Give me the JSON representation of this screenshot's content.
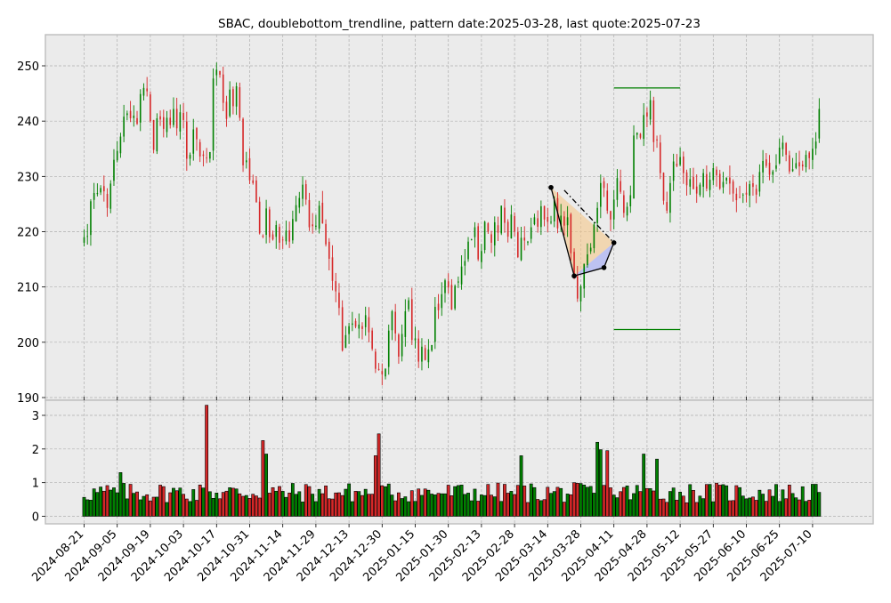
{
  "chart_data": {
    "type": "candlestick",
    "title": "SBAC, doublebottom_trendline, pattern date:2025-03-28, last quote:2025-07-23",
    "price_axis": {
      "ylim": [
        190,
        255
      ],
      "ticks": [
        190,
        200,
        210,
        220,
        230,
        240,
        250
      ]
    },
    "volume_axis": {
      "ylim": [
        0,
        3.3
      ],
      "ticks": [
        0,
        1,
        2,
        3
      ]
    },
    "x_tick_labels": [
      "2024-08-21",
      "2024-09-05",
      "2024-09-19",
      "2024-10-03",
      "2024-10-17",
      "2024-10-31",
      "2024-11-14",
      "2024-11-29",
      "2024-12-13",
      "2024-12-30",
      "2025-01-15",
      "2025-01-30",
      "2025-02-13",
      "2025-02-28",
      "2025-03-14",
      "2025-03-28",
      "2025-04-11",
      "2025-04-28",
      "2025-05-12",
      "2025-05-27",
      "2025-06-10",
      "2025-06-25",
      "2025-07-10"
    ],
    "x_tick_index": [
      0,
      10,
      20,
      30,
      40,
      50,
      60,
      70,
      80,
      90,
      100,
      110,
      120,
      130,
      140,
      150,
      160,
      170,
      180,
      190,
      200,
      210,
      220
    ],
    "grid": true,
    "colors": {
      "up": "#008000",
      "down": "#d62728",
      "background": "#ebebeb",
      "grid": "#b0b0b0",
      "pattern_line": "#000000",
      "level_line": "#008000",
      "fill_a": "#f5c88a",
      "fill_b": "#aab0f5"
    },
    "close_prices": [
      219.0,
      219.2,
      225.5,
      227.0,
      227.0,
      227.9,
      227.3,
      224.3,
      228.7,
      233.0,
      234.6,
      237.2,
      240.8,
      241.4,
      240.5,
      241.0,
      239.5,
      244.9,
      246.0,
      245.4,
      240.0,
      234.8,
      240.5,
      240.3,
      238.6,
      240.6,
      239.3,
      242.2,
      238.7,
      241.6,
      240.2,
      233.2,
      233.9,
      238.5,
      236.7,
      233.6,
      233.7,
      233.3,
      234.4,
      247.7,
      249.3,
      248.4,
      243.3,
      240.4,
      245.7,
      242.7,
      246.3,
      240.6,
      232.0,
      232.9,
      229.3,
      228.8,
      225.3,
      219.7,
      219.1,
      224.2,
      219.0,
      218.6,
      221.2,
      218.0,
      218.5,
      220.2,
      218.2,
      222.3,
      224.8,
      226.1,
      228.5,
      225.8,
      220.8,
      221.0,
      221.1,
      224.7,
      221.5,
      217.7,
      215.1,
      211.1,
      209.2,
      206.2,
      198.5,
      201.3,
      202.9,
      203.4,
      202.8,
      203.2,
      202.4,
      204.9,
      201.8,
      198.8,
      195.2,
      195.0,
      194.2,
      195.2,
      202.1,
      205.6,
      201.6,
      197.4,
      201.5,
      205.6,
      207.6,
      200.4,
      200.7,
      196.5,
      199.2,
      196.8,
      198.7,
      199.5,
      206.4,
      205.8,
      208.7,
      211.2,
      209.9,
      205.9,
      210.2,
      211.0,
      213.7,
      214.7,
      218.2,
      218.6,
      220.8,
      215.0,
      216.5,
      221.8,
      220.0,
      218.0,
      221.7,
      219.8,
      224.7,
      221.6,
      219.1,
      223.1,
      220.0,
      215.4,
      218.9,
      218.4,
      218.2,
      220.8,
      222.6,
      220.9,
      224.6,
      222.2,
      221.8,
      221.8,
      225.7,
      220.6,
      222.9,
      221.1,
      222.6,
      216.1,
      212.4,
      207.9,
      210.1,
      214.2,
      215.9,
      217.1,
      221.3,
      224.3,
      228.8,
      227.9,
      223.8,
      222.2,
      225.8,
      229.7,
      227.2,
      223.4,
      224.5,
      226.6,
      237.4,
      237.9,
      237.0,
      241.1,
      240.8,
      243.8,
      236.2,
      236.5,
      230.6,
      225.6,
      223.8,
      228.8,
      232.7,
      231.9,
      233.5,
      230.6,
      228.4,
      229.5,
      227.7,
      226.9,
      228.5,
      230.6,
      227.8,
      229.4,
      231.5,
      230.2,
      227.8,
      229.0,
      229.8,
      228.7,
      226.9,
      225.7,
      226.1,
      226.7,
      226.7,
      228.6,
      228.1,
      226.7,
      230.8,
      232.8,
      231.9,
      230.3,
      230.9,
      232.0,
      235.2,
      236.1,
      233.9,
      230.9,
      231.3,
      232.4,
      231.8,
      231.8,
      233.9,
      233.3,
      235.0,
      236.3,
      242.2
    ],
    "pattern": {
      "points": [
        {
          "i": 141,
          "price": 228.0
        },
        {
          "i": 148,
          "price": 212.0
        },
        {
          "i": 157,
          "price": 213.5
        },
        {
          "i": 160,
          "price": 218.0
        }
      ],
      "trendline": [
        {
          "i": 145,
          "price": 227.5
        },
        {
          "i": 160,
          "price": 218.0
        }
      ],
      "resistance_level": {
        "price": 246.0,
        "from_i": 160,
        "to_i": 180
      },
      "support_level": {
        "price": 202.3,
        "from_i": 160,
        "to_i": 180
      }
    }
  }
}
